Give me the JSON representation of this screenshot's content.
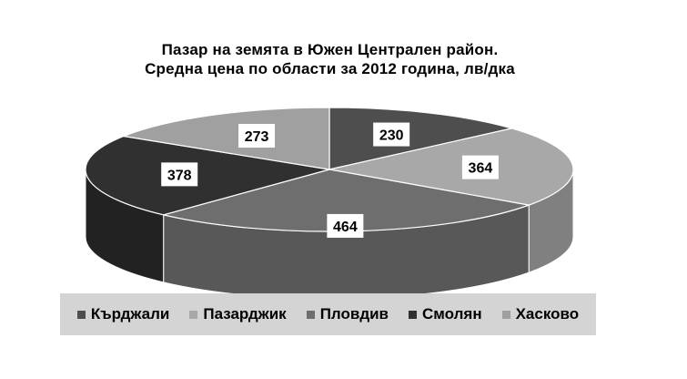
{
  "chart_data": {
    "type": "pie",
    "title_line1": "Пазар на земята в Южен Централен район.",
    "title_line2": "Средна цена по области за 2012 година, лв/дка",
    "slices": [
      {
        "name": "Кърджали",
        "value": 230,
        "color": "#4e4e4e",
        "edge": "#3a3a3a"
      },
      {
        "name": "Пазарджик",
        "value": 364,
        "color": "#a8a8a8",
        "edge": "#808080"
      },
      {
        "name": "Пловдив",
        "value": 464,
        "color": "#6e6e6e",
        "edge": "#585858"
      },
      {
        "name": "Смолян",
        "value": 378,
        "color": "#303030",
        "edge": "#222222"
      },
      {
        "name": "Хасково",
        "value": 273,
        "color": "#a0a0a0",
        "edge": "#7a7a7a"
      }
    ],
    "legend_position": "bottom"
  }
}
